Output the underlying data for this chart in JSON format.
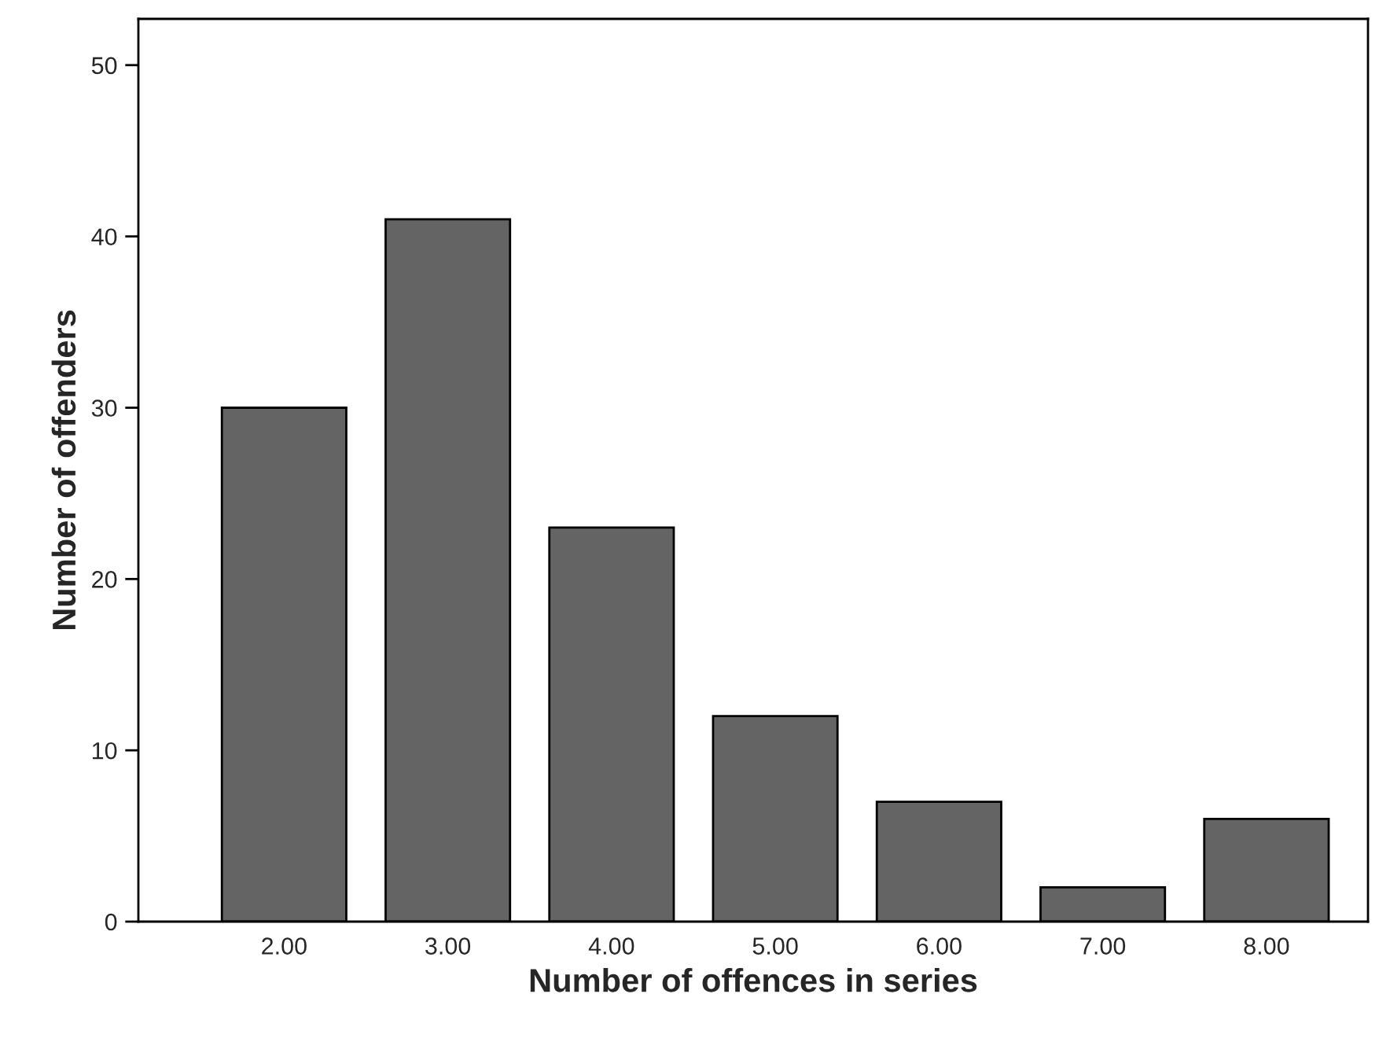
{
  "chart_data": {
    "type": "bar",
    "xlabel": "Number of offences in series",
    "ylabel": "Number of offenders",
    "categories": [
      "2.00",
      "3.00",
      "4.00",
      "5.00",
      "6.00",
      "7.00",
      "8.00"
    ],
    "values": [
      30,
      41,
      23,
      12,
      7,
      2,
      6
    ],
    "color": "#646464",
    "ylim": [
      0,
      52.7
    ],
    "yticks": [
      0,
      10,
      20,
      30,
      40,
      50
    ],
    "grid": false,
    "legend": false
  }
}
